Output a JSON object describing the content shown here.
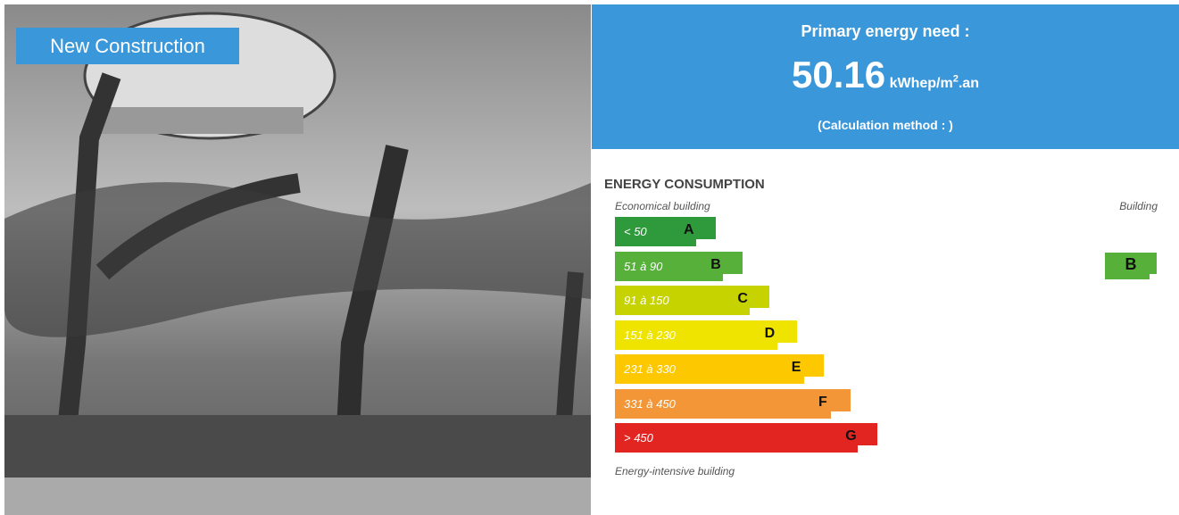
{
  "badge": "New Construction",
  "header": {
    "title": "Primary energy need :",
    "value": "50.16",
    "unit": "kWhep/m",
    "unit_sup": "2",
    "unit_suffix": ".an",
    "note": "(Calculation method : )"
  },
  "consumption": {
    "title": "ENERGY CONSUMPTION",
    "top_label": "Economical building",
    "column_label": "Building",
    "bottom_label": "Energy-intensive building",
    "rows": [
      {
        "range": "< 50",
        "letter": "A",
        "color": "#2e9a3b"
      },
      {
        "range": "51 à 90",
        "letter": "B",
        "color": "#57b03a"
      },
      {
        "range": "91 à 150",
        "letter": "C",
        "color": "#c6d300"
      },
      {
        "range": "151 à 230",
        "letter": "D",
        "color": "#efe400"
      },
      {
        "range": "231 à 330",
        "letter": "E",
        "color": "#fdc800"
      },
      {
        "range": "331 à 450",
        "letter": "F",
        "color": "#f29637"
      },
      {
        "range": "> 450",
        "letter": "G",
        "color": "#e32521"
      }
    ],
    "rating": "B"
  }
}
